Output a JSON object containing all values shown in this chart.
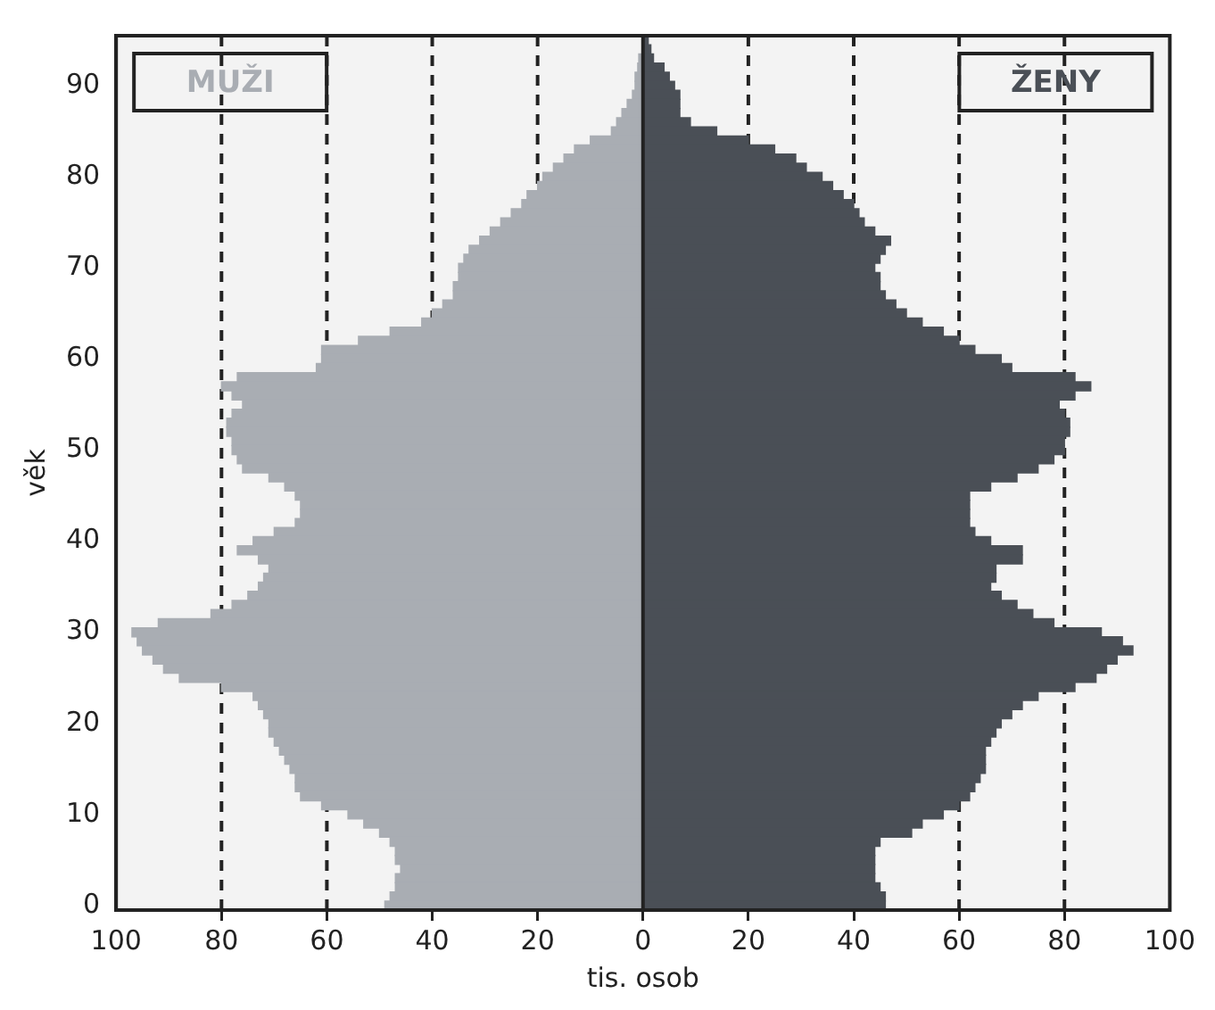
{
  "chart_data": {
    "type": "bar",
    "orientation": "horizontal",
    "xlabel": "tis. osob",
    "ylabel": "věk",
    "categories": [
      null,
      null,
      null,
      null,
      null,
      "90",
      null,
      null,
      null,
      null,
      null,
      null,
      null,
      null,
      null,
      "80",
      null,
      null,
      null,
      null,
      null,
      null,
      null,
      null,
      null,
      "70",
      null,
      null,
      null,
      null,
      null,
      null,
      null,
      null,
      null,
      "60",
      null,
      null,
      null,
      null,
      null,
      null,
      null,
      null,
      null,
      "50",
      null,
      null,
      null,
      null,
      null,
      null,
      null,
      null,
      null,
      "40",
      null,
      null,
      null,
      null,
      null,
      null,
      null,
      null,
      null,
      "30",
      null,
      null,
      null,
      null,
      null,
      null,
      null,
      null,
      null,
      "20",
      null,
      null,
      null,
      null,
      null,
      null,
      null,
      null,
      null,
      "10",
      null,
      null,
      null,
      null,
      null,
      null,
      null,
      null,
      null,
      "0"
    ],
    "series": [
      {
        "name": "MUŽI",
        "color": "#a9adb3",
        "values": [
          null,
          null,
          -0.8,
          -1,
          -1.5,
          -1.5,
          -2,
          -3,
          -4,
          -5,
          -6,
          -10,
          -13,
          -15,
          -17,
          -19,
          -20,
          -22,
          -23,
          -25,
          -27,
          -29,
          -31,
          -33,
          -34,
          -35,
          -35,
          -36,
          -36,
          -38,
          -40,
          -42,
          -48,
          -54,
          -61,
          -61,
          -62,
          -77,
          -80,
          -78,
          -76,
          -78,
          -79,
          -79,
          -78,
          -78,
          -77,
          -76,
          -71,
          -68,
          -66,
          -65,
          -65,
          -66,
          -70,
          -74,
          -77,
          -73,
          -71,
          -72,
          -73,
          -75,
          -78,
          -82,
          -92,
          -97,
          -96,
          -95,
          -93,
          -91,
          -88,
          -80,
          -74,
          -73,
          -72,
          -71,
          -71,
          -70,
          -69,
          -68,
          -67,
          -66,
          -66,
          -65,
          -61,
          -56,
          -53,
          -50,
          -48,
          -47,
          -47,
          -46,
          -47,
          -47,
          -48,
          -49
        ]
      },
      {
        "name": "ŽENY",
        "color": "#4a4f56",
        "values": [
          1,
          1.5,
          2,
          4,
          5,
          6,
          7,
          7,
          7,
          9,
          14,
          20,
          25,
          29,
          31,
          34,
          36,
          38,
          40,
          41,
          42,
          44,
          47,
          46,
          45,
          44,
          45,
          45,
          46,
          48,
          50,
          53,
          57,
          60,
          63,
          68,
          70,
          82,
          85,
          82,
          79,
          80,
          81,
          81,
          80,
          80,
          78,
          75,
          71,
          66,
          62,
          62,
          62,
          62,
          63,
          66,
          72,
          72,
          67,
          67,
          66,
          68,
          71,
          74,
          78,
          87,
          91,
          93,
          90,
          88,
          86,
          82,
          75,
          72,
          70,
          68,
          67,
          66,
          65,
          65,
          65,
          64,
          63,
          62,
          60,
          57,
          53,
          51,
          45,
          44,
          44,
          44,
          44,
          45,
          46,
          46
        ]
      }
    ],
    "xlim": [
      -100,
      100
    ],
    "xticks": [
      {
        "value": -100,
        "label": "100"
      },
      {
        "value": -80,
        "label": "80"
      },
      {
        "value": -60,
        "label": "60"
      },
      {
        "value": -40,
        "label": "40"
      },
      {
        "value": -20,
        "label": "20"
      },
      0,
      20,
      40,
      60,
      80,
      100
    ],
    "stacked": true,
    "grid": "x",
    "line_style": "dashed",
    "legend": false
  }
}
